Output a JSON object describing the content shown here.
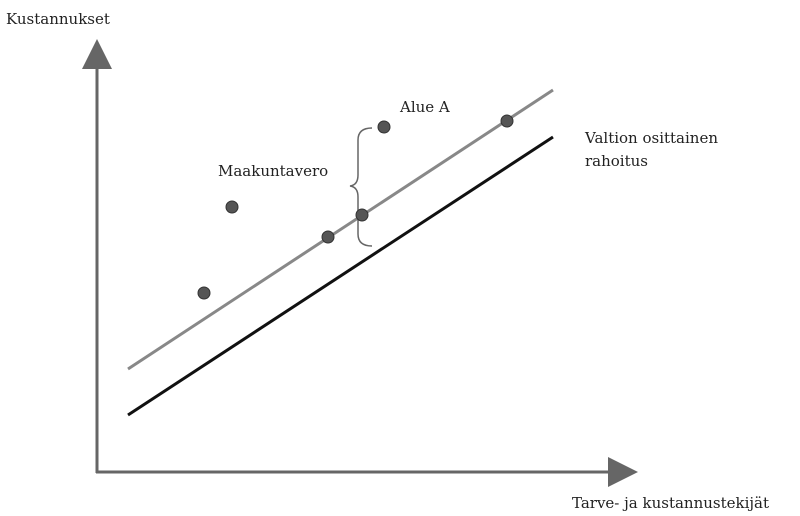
{
  "axes": {
    "y_label": "Kustannukset",
    "x_label": "Tarve- ja kustannustekijät"
  },
  "annotations": {
    "point_label": "Alue A",
    "brace_label": "Maakuntavero",
    "line_label": [
      "Valtion osittainen",
      "rahoitus"
    ]
  }
}
